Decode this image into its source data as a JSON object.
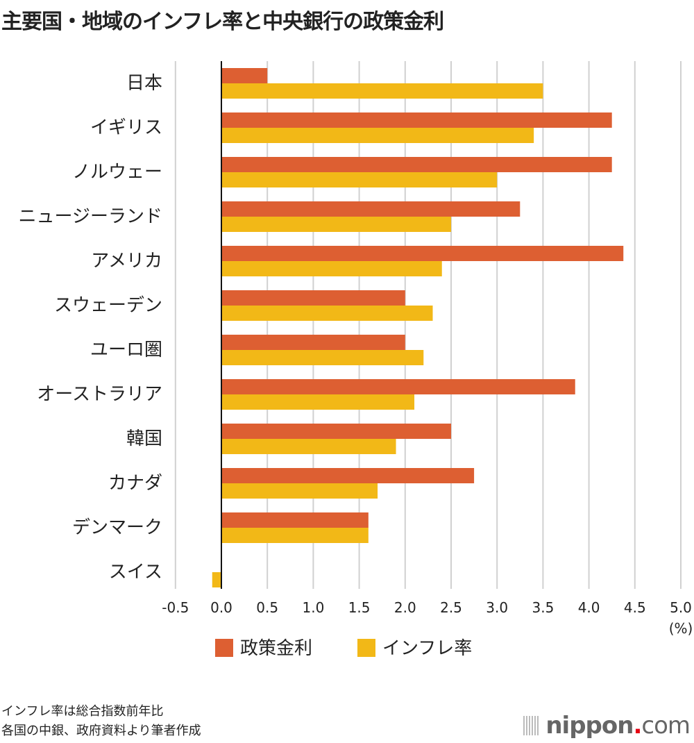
{
  "title": "主要国・地域のインフレ率と中央銀行の政策金利",
  "notes": [
    "インフレ率は総合指数前年比",
    "各国の中銀、政府資料より筆者作成"
  ],
  "logo": {
    "name": "nippon",
    "dot": ".",
    "suffix": "com"
  },
  "chart_data": {
    "type": "bar",
    "orientation": "horizontal",
    "title": "主要国・地域のインフレ率と中央銀行の政策金利",
    "unit_label": "(%)",
    "categories": [
      "日本",
      "イギリス",
      "ノルウェー",
      "ニュージーランド",
      "アメリカ",
      "スウェーデン",
      "ユーロ圏",
      "オーストラリア",
      "韓国",
      "カナダ",
      "デンマーク",
      "スイス"
    ],
    "series": [
      {
        "name": "政策金利",
        "color": "#dd5f32",
        "values": [
          0.5,
          4.25,
          4.25,
          3.25,
          4.375,
          2.0,
          2.0,
          3.85,
          2.5,
          2.75,
          1.6,
          0
        ]
      },
      {
        "name": "インフレ率",
        "color": "#f2b817",
        "values": [
          3.5,
          3.4,
          3.0,
          2.5,
          2.4,
          2.3,
          2.2,
          2.1,
          1.9,
          1.7,
          1.6,
          -0.1
        ]
      }
    ],
    "xlim": [
      -0.5,
      5.0
    ],
    "xticks": [
      "-0.5",
      "0.0",
      "0.5",
      "1.0",
      "1.5",
      "2.0",
      "2.5",
      "3.0",
      "3.5",
      "4.0",
      "4.5",
      "5.0"
    ],
    "grid": true,
    "legend": "bottom"
  }
}
